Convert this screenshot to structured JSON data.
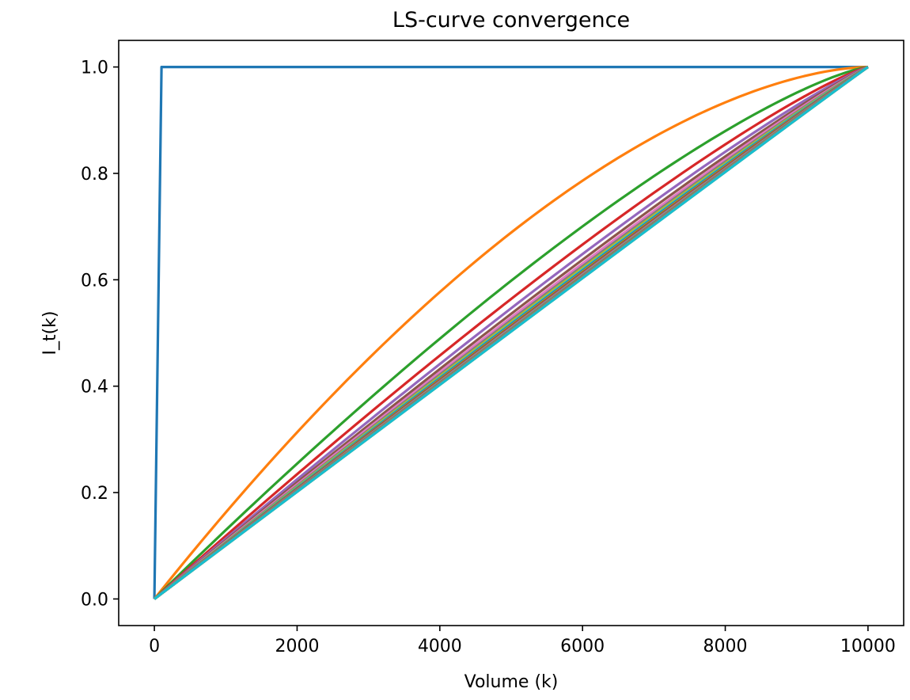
{
  "chart_data": {
    "type": "line",
    "title": "LS-curve convergence",
    "xlabel": "Volume (k)",
    "ylabel": "I_t(k)",
    "xlim": [
      -500,
      10500
    ],
    "ylim": [
      -0.05,
      1.05
    ],
    "xticks": [
      0,
      2000,
      4000,
      6000,
      8000,
      10000
    ],
    "xtick_labels": [
      "0",
      "2000",
      "4000",
      "6000",
      "8000",
      "10000"
    ],
    "yticks": [
      0.0,
      0.2,
      0.4,
      0.6,
      0.8,
      1.0
    ],
    "ytick_labels": [
      "0.0",
      "0.2",
      "0.4",
      "0.6",
      "0.8",
      "1.0"
    ],
    "grid": false,
    "legend": "none",
    "x": [
      0,
      100,
      200,
      300,
      400,
      500,
      600,
      700,
      800,
      900,
      1000,
      1100,
      1200,
      1300,
      1400,
      1500,
      1600,
      1700,
      1800,
      1900,
      2000,
      2100,
      2200,
      2300,
      2400,
      2500,
      2600,
      2700,
      2800,
      2900,
      3000,
      3100,
      3200,
      3300,
      3400,
      3500,
      3600,
      3700,
      3800,
      3900,
      4000,
      4100,
      4200,
      4300,
      4400,
      4500,
      4600,
      4700,
      4800,
      4900,
      5000,
      5100,
      5200,
      5300,
      5400,
      5500,
      5600,
      5700,
      5800,
      5900,
      6000,
      6100,
      6200,
      6300,
      6400,
      6500,
      6600,
      6700,
      6800,
      6900,
      7000,
      7100,
      7200,
      7300,
      7400,
      7500,
      7600,
      7700,
      7800,
      7900,
      8000,
      8100,
      8200,
      8300,
      8400,
      8500,
      8600,
      8700,
      8800,
      8900,
      9000,
      9100,
      9200,
      9300,
      9400,
      9500,
      9600,
      9700,
      9800,
      9900,
      10000
    ],
    "series_count": 40,
    "series_colors": [
      "#1f77b4",
      "#ff7f0e",
      "#2ca02c",
      "#d62728",
      "#9467bd",
      "#8c564b",
      "#e377c2",
      "#7f7f7f",
      "#bcbd22",
      "#17becf"
    ]
  }
}
